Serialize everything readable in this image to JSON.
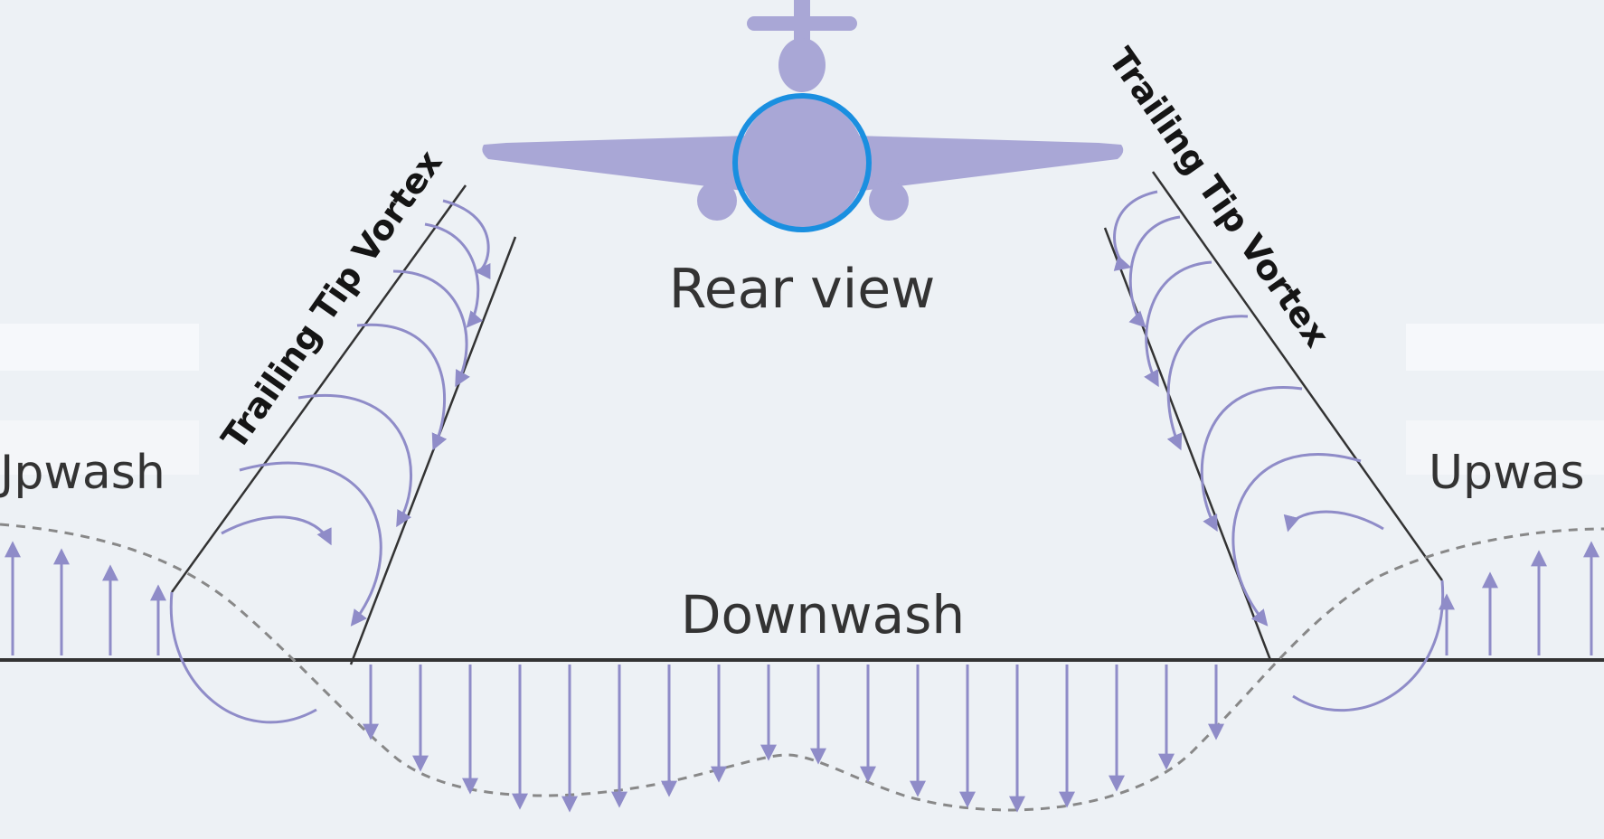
{
  "labels": {
    "rear_view": "Rear view",
    "downwash": "Downwash",
    "left_upwash": "Jpwash",
    "right_upwash": "Upwas",
    "left_vortex": "Trailing Tip Vortex",
    "right_vortex": "Trailing Tip Vortex"
  },
  "colors": {
    "background": "#e9eef3",
    "aircraft": "#a9a7d6",
    "aircraft_outline": "#8f8cc4",
    "highlight_ring": "#1a8fe0",
    "flow": "#8f8cc8",
    "ground_line": "#333333",
    "text": "#333333"
  }
}
